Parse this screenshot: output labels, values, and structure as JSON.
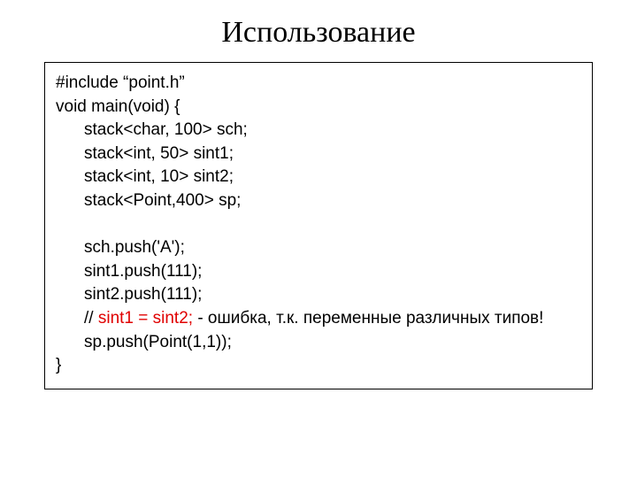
{
  "title": "Использование",
  "code": {
    "l1": "#include “point.h”",
    "l2": "void main(void) {",
    "l3": "stack<char, 100> sch;",
    "l4": "stack<int, 50> sint1;",
    "l5": "stack<int, 10> sint2;",
    "l6": "stack<Point,400> sp;",
    "l7": "sch.push('A');",
    "l8": "sint1.push(111);",
    "l9": "sint2.push(111);",
    "l10a": "// ",
    "l10b": "sint1 = sint2;",
    "l10c": " - ошибка, т.к. переменные различных типов!",
    "l11": "sp.push(Point(1,1));",
    "l12": "}"
  },
  "colors": {
    "error_highlight": "#e00000",
    "text": "#000000",
    "background": "#ffffff",
    "border": "#000000"
  },
  "fonts": {
    "title_family": "Times New Roman",
    "title_size_pt": 26,
    "code_family": "Arial",
    "code_size_pt": 14
  }
}
